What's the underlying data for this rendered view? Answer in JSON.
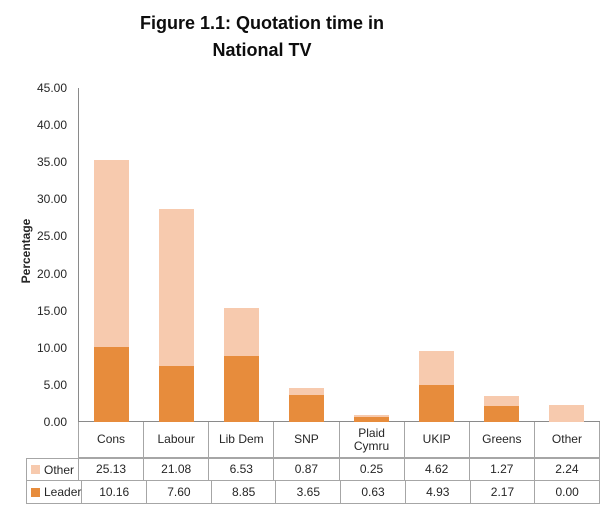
{
  "title": {
    "line1": "Figure 1.1: Quotation time in",
    "line2": "National TV"
  },
  "chart_data": {
    "type": "bar",
    "stacked": true,
    "title": "Figure 1.1: Quotation time in National TV",
    "xlabel": "",
    "ylabel": "Percentage",
    "ylim": [
      0,
      45
    ],
    "ytick_step": 5,
    "ytick_labels": [
      "0.00",
      "5.00",
      "10.00",
      "15.00",
      "20.00",
      "25.00",
      "30.00",
      "35.00",
      "40.00",
      "45.00"
    ],
    "grid": false,
    "legend_position": "data-table-left",
    "categories": [
      "Cons",
      "Labour",
      "Lib Dem",
      "SNP",
      "Plaid Cymru",
      "UKIP",
      "Greens",
      "Other"
    ],
    "series": [
      {
        "name": "Leader",
        "color": "#E78C3C",
        "values": [
          10.16,
          7.6,
          8.85,
          3.65,
          0.63,
          4.93,
          2.17,
          0.0
        ]
      },
      {
        "name": "Other",
        "color": "#F7CAAE",
        "values": [
          25.13,
          21.08,
          6.53,
          0.87,
          0.25,
          4.62,
          1.27,
          2.24
        ]
      }
    ],
    "table": {
      "row_order": [
        "Other",
        "Leader"
      ],
      "rows": [
        {
          "label": "Other",
          "values_display": [
            "25.13",
            "21.08",
            "6.53",
            "0.87",
            "0.25",
            "4.62",
            "1.27",
            "2.24"
          ]
        },
        {
          "label": "Leader",
          "values_display": [
            "10.16",
            "7.60",
            "8.85",
            "3.65",
            "0.63",
            "4.93",
            "2.17",
            "0.00"
          ]
        }
      ]
    },
    "colors": {
      "axis_line": "#8A8A8A",
      "table_border": "#A6A6A6",
      "text": "#262626"
    }
  }
}
